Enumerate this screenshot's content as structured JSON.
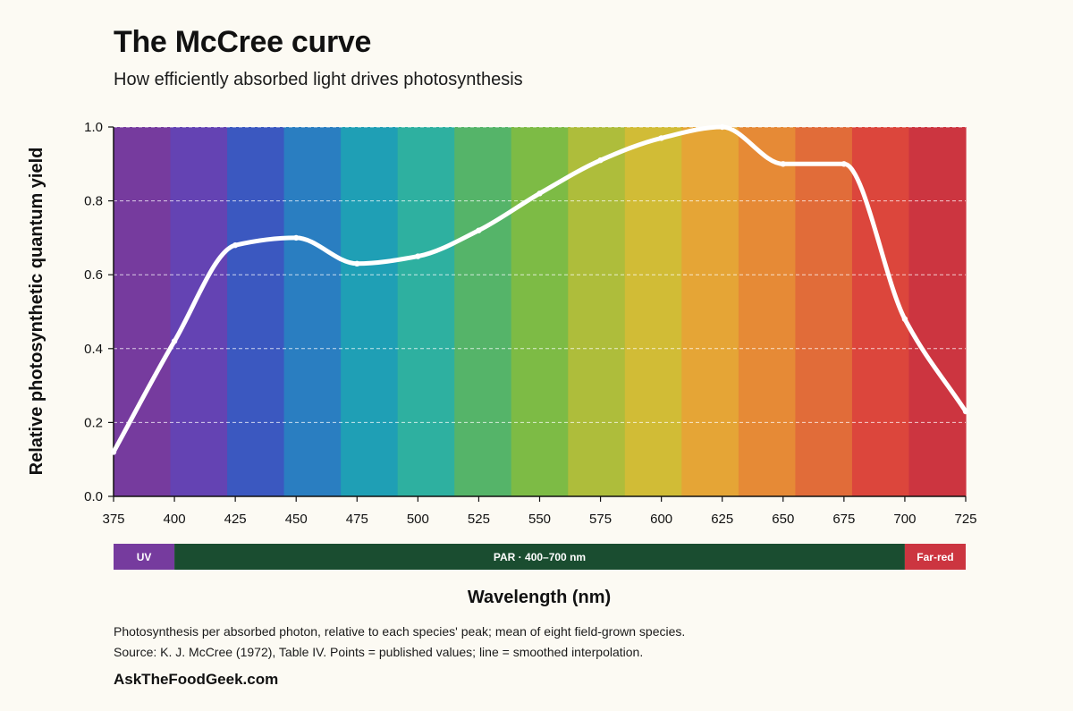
{
  "title": "The McCree curve",
  "subtitle": "How efficiently absorbed light drives photosynthesis",
  "notes": {
    "line1": "Photosynthesis per absorbed photon, relative to each species' peak; mean of eight field-grown species.",
    "line2": "Source: K. J. McCree (1972), Table IV. Points = published values; line = smoothed interpolation."
  },
  "brand": "AskTheFoodGeek.com",
  "chart_data": {
    "type": "line",
    "xlabel": "Wavelength (nm)",
    "ylabel": "Relative photosynthetic quantum yield",
    "xlim": [
      375,
      725
    ],
    "ylim": [
      0,
      1.0
    ],
    "x_ticks": [
      375,
      400,
      425,
      450,
      475,
      500,
      525,
      550,
      575,
      600,
      625,
      650,
      675,
      700,
      725
    ],
    "y_ticks": [
      "0.0",
      "0.2",
      "0.4",
      "0.6",
      "0.8",
      "1.0"
    ],
    "grid": "horizontal dashed",
    "x": [
      375,
      400,
      425,
      450,
      475,
      500,
      525,
      550,
      575,
      600,
      625,
      650,
      675,
      700,
      725
    ],
    "y": [
      0.12,
      0.42,
      0.68,
      0.7,
      0.63,
      0.65,
      0.72,
      0.82,
      0.91,
      0.97,
      1.0,
      0.9,
      0.9,
      0.48,
      0.23
    ],
    "line_color": "#ffffff",
    "spectrum_colors": [
      "#763b9e",
      "#6443b3",
      "#3b58c0",
      "#2a7ec1",
      "#1f9fb5",
      "#2eb0a0",
      "#55b469",
      "#7dbb45",
      "#aebd3b",
      "#d1bc36",
      "#e5a536",
      "#e68a36",
      "#e16c39",
      "#dc463c",
      "#cc3540"
    ],
    "bands": [
      {
        "label": "UV",
        "from": 375,
        "to": 400,
        "color": "#763b9e"
      },
      {
        "label": "PAR · 400–700 nm",
        "from": 400,
        "to": 700,
        "color": "#1a4d30"
      },
      {
        "label": "Far-red",
        "from": 700,
        "to": 725,
        "color": "#cc3540"
      }
    ]
  }
}
